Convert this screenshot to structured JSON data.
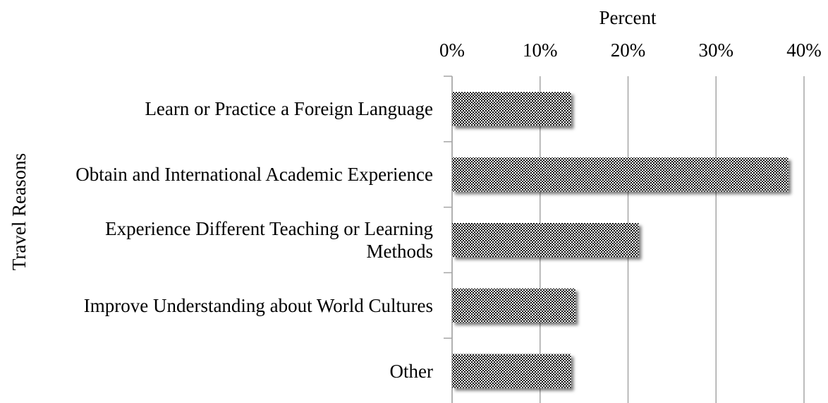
{
  "chart_data": {
    "type": "bar",
    "orientation": "horizontal",
    "x_label": "Percent",
    "y_label": "Travel Reasons",
    "categories": [
      "Learn or Practice a Foreign Language",
      "Obtain and International Academic Experience",
      "Experience Different Teaching or Learning Methods",
      "Improve Understanding about World Cultures",
      "Other"
    ],
    "values": [
      13.5,
      38.2,
      21.2,
      14.0,
      13.5
    ],
    "xlim": [
      0,
      40
    ],
    "xticks": [
      {
        "value": 0,
        "label": "0%"
      },
      {
        "value": 10,
        "label": "10%"
      },
      {
        "value": 20,
        "label": "20%"
      },
      {
        "value": 30,
        "label": "30%"
      },
      {
        "value": 40,
        "label": "40%"
      }
    ],
    "grid": true,
    "x_axis_position": "top"
  }
}
